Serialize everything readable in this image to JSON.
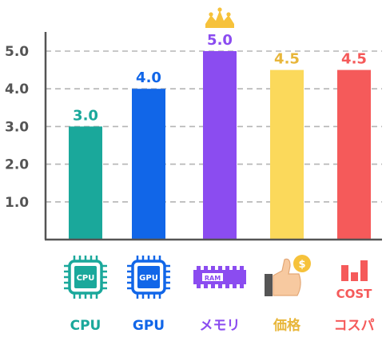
{
  "chart_data": {
    "type": "bar",
    "categories": [
      "CPU",
      "GPU",
      "メモリ",
      "価格",
      "コスパ"
    ],
    "values": [
      3.0,
      4.0,
      5.0,
      4.5,
      4.5
    ],
    "value_labels": [
      "3.0",
      "4.0",
      "5.0",
      "4.5",
      "4.5"
    ],
    "colors": [
      "#1aa89b",
      "#1166e8",
      "#8b4cf0",
      "#fbd95b",
      "#f55a5a"
    ],
    "label_colors": [
      "#1aa89b",
      "#1166e8",
      "#8b4cf0",
      "#e8b63a",
      "#f55a5a"
    ],
    "icons": [
      "cpu-chip-icon",
      "gpu-chip-icon",
      "ram-module-icon",
      "thumbs-up-coin-icon",
      "cost-bars-icon"
    ],
    "icon_texts": [
      "CPU",
      "GPU",
      "RAM",
      "$",
      "COST"
    ],
    "yticks": [
      1.0,
      2.0,
      3.0,
      4.0,
      5.0
    ],
    "ytick_labels": [
      "1.0",
      "2.0",
      "3.0",
      "4.0",
      "5.0"
    ],
    "ylim": [
      0,
      5.5
    ],
    "grid": true,
    "highlight_top": "crown-icon",
    "title": "",
    "xlabel": "",
    "ylabel": ""
  }
}
